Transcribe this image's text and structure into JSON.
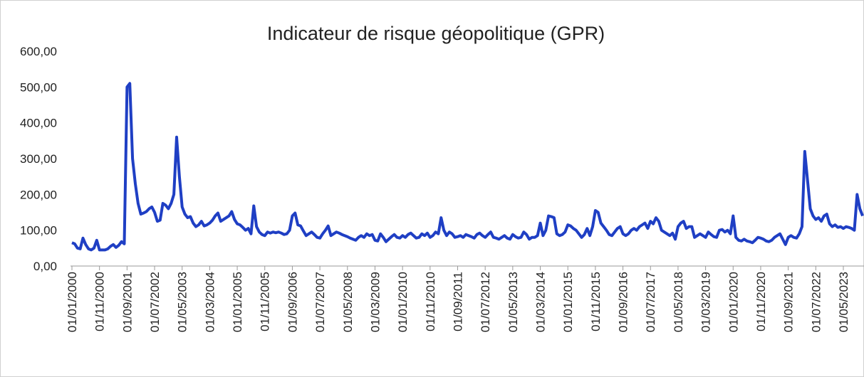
{
  "chart_data": {
    "type": "line",
    "title": "Indicateur de risque géopolitique (GPR)",
    "color": "#1f3fc4",
    "categories": [
      "01/01/2000",
      null,
      null,
      null,
      null,
      null,
      null,
      null,
      null,
      null,
      "01/11/2000",
      null,
      null,
      null,
      null,
      null,
      null,
      null,
      null,
      null,
      "01/09/2001",
      null,
      null,
      null,
      null,
      null,
      null,
      null,
      null,
      null,
      "01/07/2002",
      null,
      null,
      null,
      null,
      null,
      null,
      null,
      null,
      null,
      "01/05/2003",
      null,
      null,
      null,
      null,
      null,
      null,
      null,
      null,
      null,
      "01/03/2004",
      null,
      null,
      null,
      null,
      null,
      null,
      null,
      null,
      null,
      "01/01/2005",
      null,
      null,
      null,
      null,
      null,
      null,
      null,
      null,
      null,
      "01/11/2005",
      null,
      null,
      null,
      null,
      null,
      null,
      null,
      null,
      null,
      "01/09/2006",
      null,
      null,
      null,
      null,
      null,
      null,
      null,
      null,
      null,
      "01/07/2007",
      null,
      null,
      null,
      null,
      null,
      null,
      null,
      null,
      null,
      "01/05/2008",
      null,
      null,
      null,
      null,
      null,
      null,
      null,
      null,
      null,
      "01/03/2009",
      null,
      null,
      null,
      null,
      null,
      null,
      null,
      null,
      null,
      "01/01/2010",
      null,
      null,
      null,
      null,
      null,
      null,
      null,
      null,
      null,
      "01/11/2010",
      null,
      null,
      null,
      null,
      null,
      null,
      null,
      null,
      null,
      "01/09/2011",
      null,
      null,
      null,
      null,
      null,
      null,
      null,
      null,
      null,
      "01/07/2012",
      null,
      null,
      null,
      null,
      null,
      null,
      null,
      null,
      null,
      "01/05/2013",
      null,
      null,
      null,
      null,
      null,
      null,
      null,
      null,
      null,
      "01/03/2014",
      null,
      null,
      null,
      null,
      null,
      null,
      null,
      null,
      null,
      "01/01/2015",
      null,
      null,
      null,
      null,
      null,
      null,
      null,
      null,
      null,
      "01/11/2015",
      null,
      null,
      null,
      null,
      null,
      null,
      null,
      null,
      null,
      "01/09/2016",
      null,
      null,
      null,
      null,
      null,
      null,
      null,
      null,
      null,
      "01/07/2017",
      null,
      null,
      null,
      null,
      null,
      null,
      null,
      null,
      null,
      "01/05/2018",
      null,
      null,
      null,
      null,
      null,
      null,
      null,
      null,
      null,
      "01/03/2019",
      null,
      null,
      null,
      null,
      null,
      null,
      null,
      null,
      null,
      "01/01/2020",
      null,
      null,
      null,
      null,
      null,
      null,
      null,
      null,
      null,
      "01/11/2020",
      null,
      null,
      null,
      null,
      null,
      null,
      null,
      null,
      null,
      "01/09/2021",
      null,
      null,
      null,
      null,
      null,
      null,
      null,
      null,
      null,
      "01/07/2022",
      null,
      null,
      null,
      null,
      null,
      null,
      null,
      null,
      null,
      "01/05/2023",
      null,
      null,
      null,
      null,
      null,
      null,
      null
    ],
    "values": [
      65,
      62,
      50,
      48,
      78,
      60,
      48,
      45,
      50,
      72,
      45,
      45,
      45,
      48,
      55,
      60,
      52,
      58,
      68,
      62,
      500,
      510,
      300,
      230,
      175,
      145,
      148,
      152,
      160,
      165,
      150,
      125,
      128,
      175,
      170,
      160,
      175,
      200,
      360,
      250,
      165,
      145,
      135,
      138,
      120,
      110,
      115,
      125,
      112,
      115,
      120,
      128,
      140,
      148,
      125,
      130,
      135,
      140,
      152,
      130,
      118,
      115,
      108,
      100,
      105,
      90,
      168,
      110,
      95,
      88,
      85,
      95,
      92,
      95,
      93,
      95,
      92,
      88,
      90,
      100,
      140,
      148,
      115,
      112,
      98,
      85,
      90,
      95,
      88,
      80,
      78,
      90,
      100,
      112,
      85,
      90,
      95,
      92,
      88,
      85,
      82,
      78,
      75,
      72,
      80,
      85,
      80,
      90,
      85,
      88,
      72,
      70,
      90,
      80,
      68,
      75,
      82,
      88,
      80,
      78,
      85,
      80,
      88,
      92,
      85,
      78,
      80,
      90,
      85,
      92,
      80,
      85,
      95,
      90,
      135,
      100,
      85,
      95,
      90,
      80,
      82,
      85,
      80,
      88,
      85,
      82,
      78,
      88,
      92,
      85,
      80,
      88,
      95,
      80,
      78,
      75,
      80,
      85,
      78,
      75,
      88,
      82,
      78,
      80,
      95,
      88,
      75,
      80,
      80,
      85,
      120,
      85,
      100,
      140,
      138,
      135,
      90,
      85,
      88,
      95,
      115,
      112,
      105,
      100,
      90,
      80,
      88,
      105,
      85,
      110,
      155,
      150,
      120,
      110,
      100,
      88,
      85,
      95,
      105,
      110,
      90,
      85,
      90,
      100,
      105,
      100,
      110,
      115,
      120,
      105,
      125,
      118,
      135,
      125,
      100,
      95,
      90,
      85,
      92,
      75,
      110,
      120,
      125,
      105,
      110,
      110,
      80,
      85,
      90,
      85,
      80,
      95,
      88,
      82,
      80,
      100,
      102,
      95,
      100,
      90,
      140,
      80,
      72,
      70,
      75,
      70,
      68,
      65,
      72,
      80,
      78,
      75,
      70,
      68,
      72,
      80,
      85,
      90,
      75,
      60,
      80,
      85,
      80,
      78,
      90,
      110,
      320,
      240,
      160,
      140,
      130,
      135,
      125,
      140,
      145,
      118,
      110,
      115,
      108,
      110,
      105,
      110,
      108,
      105,
      100,
      200,
      160,
      140
    ],
    "ylim": [
      0,
      600
    ],
    "yticks": [
      {
        "value": 0,
        "label": "0,00"
      },
      {
        "value": 100,
        "label": "100,00"
      },
      {
        "value": 200,
        "label": "200,00"
      },
      {
        "value": 300,
        "label": "300,00"
      },
      {
        "value": 400,
        "label": "400,00"
      },
      {
        "value": 500,
        "label": "500,00"
      },
      {
        "value": 600,
        "label": "600,00"
      }
    ],
    "grid": false
  }
}
